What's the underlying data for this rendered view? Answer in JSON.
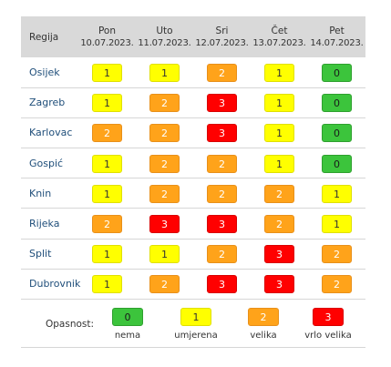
{
  "header": {
    "region_label": "Regija",
    "days": [
      {
        "day": "Pon",
        "date": "10.07.2023."
      },
      {
        "day": "Uto",
        "date": "11.07.2023."
      },
      {
        "day": "Sri",
        "date": "12.07.2023."
      },
      {
        "day": "Čet",
        "date": "13.07.2023."
      },
      {
        "day": "Pet",
        "date": "14.07.2023."
      }
    ]
  },
  "rows": [
    {
      "region": "Osijek",
      "levels": [
        "1",
        "1",
        "2",
        "1",
        "0"
      ]
    },
    {
      "region": "Zagreb",
      "levels": [
        "1",
        "2",
        "3",
        "1",
        "0"
      ]
    },
    {
      "region": "Karlovac",
      "levels": [
        "2",
        "2",
        "3",
        "1",
        "0"
      ]
    },
    {
      "region": "Gospić",
      "levels": [
        "1",
        "2",
        "2",
        "1",
        "0"
      ]
    },
    {
      "region": "Knin",
      "levels": [
        "1",
        "2",
        "2",
        "2",
        "1"
      ]
    },
    {
      "region": "Rijeka",
      "levels": [
        "2",
        "3",
        "3",
        "2",
        "1"
      ]
    },
    {
      "region": "Split",
      "levels": [
        "1",
        "1",
        "2",
        "3",
        "2"
      ]
    },
    {
      "region": "Dubrovnik",
      "levels": [
        "1",
        "2",
        "3",
        "3",
        "2"
      ]
    }
  ],
  "legend": {
    "label": "Opasnost:",
    "items": [
      {
        "value": "0",
        "name": "nema"
      },
      {
        "value": "1",
        "name": "umjerena"
      },
      {
        "value": "2",
        "name": "velika"
      },
      {
        "value": "3",
        "name": "vrlo velika"
      }
    ]
  },
  "level_colors": {
    "0": {
      "bg": "#3cc43c",
      "border": "#2ea02e",
      "fg": "#1a1a1a"
    },
    "1": {
      "bg": "#ffff00",
      "border": "#e0e000",
      "fg": "#333333"
    },
    "2": {
      "bg": "#ffa31a",
      "border": "#e8901a",
      "fg": "#ffffff"
    },
    "3": {
      "bg": "#ff0000",
      "border": "#d90000",
      "fg": "#ffffff"
    }
  }
}
